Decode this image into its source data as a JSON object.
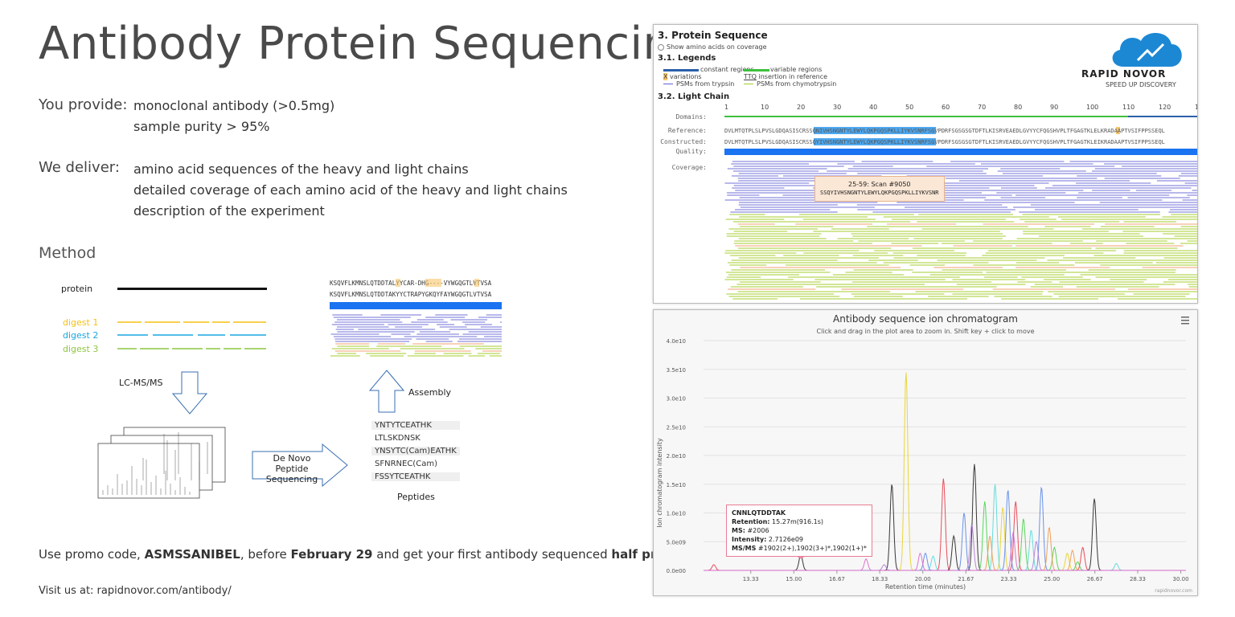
{
  "title": "Antibody Protein Sequencing",
  "provide": {
    "label": "You provide:",
    "items": [
      "monoclonal antibody (>0.5mg)",
      "sample purity > 95%"
    ]
  },
  "deliver": {
    "label": "We deliver:",
    "items": [
      "amino acid sequences of the heavy and light chains",
      "detailed coverage of each amino acid of the heavy and light chains",
      "description of the experiment"
    ]
  },
  "method": {
    "label": "Method",
    "protein_label": "protein",
    "digests": [
      {
        "label": "digest 1",
        "color": "#f5c010"
      },
      {
        "label": "digest 2",
        "color": "#1aa6e0"
      },
      {
        "label": "digest 3",
        "color": "#8cc63f"
      }
    ],
    "lcms_label": "LC-MS/MS",
    "denovo_label": "De Novo Peptide Sequencing",
    "assembly_label": "Assembly",
    "peptides_label": "Peptides",
    "peptides": [
      "YNTYTCEATHK",
      "LTLSKDNSK",
      "YNSYTC(Cam)EATHK",
      "SFNRNEC(Cam)",
      "FSSYTCEATHK"
    ],
    "seq_line1": "KSQVFLKMNSLQTDDTALYYCAR-DHG----VYWGQGTLVTVSA",
    "seq_line2": "KSQVFLKMNSLQTDDTAKYYCTRAPYGKQYFAYWGQGTLVTVSA"
  },
  "promo": {
    "prefix": "Use promo code, ",
    "code": "ASMSSANIBEL",
    "mid": ", before ",
    "date": "February 29",
    "mid2": " and get your first antibody sequenced ",
    "deal": "half price",
    "suffix": "."
  },
  "visit": "Visit us at: rapidnovor.com/antibody/",
  "protein_sequence_panel": {
    "heading": "3. Protein Sequence",
    "checkbox_label": "Show amino acids on coverage",
    "legends_heading": "3.1. Legends",
    "legend": {
      "constant": "constant regions",
      "variable": "variable regions",
      "variations": "variations",
      "variations_marker": "X",
      "insertion": "insertion in reference",
      "insertion_marker": "TTQ",
      "psm_trypsin": "PSMs from trypsin",
      "psm_chymo": "PSMs from chymotrypsin"
    },
    "chain_heading": "3.2. Light Chain",
    "brand": "RAPID NOVOR",
    "tagline": "SPEED UP DISCOVERY",
    "ruler": [
      "1",
      "10",
      "20",
      "30",
      "40",
      "50",
      "60",
      "70",
      "80",
      "90",
      "100",
      "110",
      "120",
      "1"
    ],
    "row_labels": {
      "domains": "Domains:",
      "reference": "Reference:",
      "constructed": "Constructed:",
      "quality": "Quality:",
      "coverage": "Coverage:"
    },
    "reference_seq": "DVLMTQTPLSLPVSLGDQASISCRSSQNIVHSNGNTYLEWYLQKPGQSPKLLIYKVSNRFSGVPDRFSGSGSGTDFTLKISRVEAEDLGVYYCFQGSHVPLTFGAGTKLELKRADAAPTVSIFPPSSEQL",
    "constructed_seq": "DVLMTQTPLSLPVSLGDQASISCRSSQYIVHSNGNTYLEWYLQKPGQSPKLLIYKVSNRFSGVPDRFSGSGSGTDFTLKISRVEAEDLGVYYCFQGSHVPLTFGAGTKLEIKRADAAPTVSIFPPSSEQL",
    "tooltip_title": "25-59: Scan #9050",
    "tooltip_seq": "SSQYIVHSNGNTYLEWYLQKPGQSPKLLIYKVSNR"
  },
  "chart_data": {
    "type": "line",
    "title": "Antibody sequence ion chromatogram",
    "subtitle": "Click and drag in the plot area to zoom in. Shift key + click to move",
    "xlabel": "Retention time (minutes)",
    "ylabel": "Ion chromatogram intensity",
    "xlim": [
      11.5,
      30.2
    ],
    "ylim": [
      0,
      40000000000.0
    ],
    "x_ticks": [
      "13.33",
      "15.00",
      "16.67",
      "18.33",
      "20.00",
      "21.67",
      "23.33",
      "25.00",
      "26.67",
      "28.33",
      "30.00"
    ],
    "y_ticks": [
      "0.0e00",
      "5.0e09",
      "1.0e10",
      "1.5e10",
      "2.0e10",
      "2.5e10",
      "3.0e10",
      "3.5e10",
      "4.0e10"
    ],
    "grid": true,
    "credit": "rapidnovor.com",
    "tooltip": {
      "title": "CNNLQTDDTAK",
      "lines": [
        {
          "key": "Retention:",
          "value": "15.27m(916.1s)"
        },
        {
          "key": "MS:",
          "value": "#2006"
        },
        {
          "key": "Intensity:",
          "value": "2.7126e09"
        },
        {
          "key": "MS/MS",
          "value": "#1902(2+),1902(3+)*,1902(1+)*"
        }
      ]
    },
    "series": [
      {
        "color": "#e8d028",
        "peaks": [
          [
            19.35,
            34500000000.0
          ],
          [
            23.1,
            11000000000.0
          ],
          [
            25.6,
            3000000000.0
          ]
        ]
      },
      {
        "color": "#e83848",
        "peaks": [
          [
            11.9,
            1000000000.0
          ],
          [
            20.8,
            16000000000.0
          ],
          [
            23.6,
            12000000000.0
          ],
          [
            26.2,
            4000000000.0
          ]
        ]
      },
      {
        "color": "#222222",
        "peaks": [
          [
            15.27,
            2700000000.0
          ],
          [
            18.8,
            15000000000.0
          ],
          [
            22.0,
            18500000000.0
          ],
          [
            26.65,
            12500000000.0
          ],
          [
            21.2,
            6000000000.0
          ]
        ]
      },
      {
        "color": "#5a86e8",
        "peaks": [
          [
            21.6,
            10000000000.0
          ],
          [
            23.3,
            14000000000.0
          ],
          [
            24.6,
            14500000000.0
          ],
          [
            20.1,
            3000000000.0
          ]
        ]
      },
      {
        "color": "#46d24a",
        "peaks": [
          [
            22.4,
            12000000000.0
          ],
          [
            23.9,
            9000000000.0
          ],
          [
            25.1,
            4000000000.0
          ],
          [
            26.0,
            1500000000.0
          ]
        ]
      },
      {
        "color": "#58d8d8",
        "peaks": [
          [
            22.8,
            15000000000.0
          ],
          [
            24.2,
            7000000000.0
          ],
          [
            20.4,
            2500000000.0
          ],
          [
            27.5,
            1200000000.0
          ]
        ]
      },
      {
        "color": "#f09848",
        "peaks": [
          [
            24.9,
            7500000000.0
          ],
          [
            22.6,
            6000000000.0
          ],
          [
            25.8,
            3500000000.0
          ]
        ]
      },
      {
        "color": "#b07ad8",
        "peaks": [
          [
            21.9,
            8000000000.0
          ],
          [
            24.4,
            5000000000.0
          ],
          [
            18.5,
            1000000000.0
          ]
        ]
      },
      {
        "color": "#d866c8",
        "peaks": [
          [
            17.8,
            2000000000.0
          ],
          [
            19.9,
            3000000000.0
          ],
          [
            23.5,
            6500000000.0
          ]
        ]
      }
    ]
  }
}
